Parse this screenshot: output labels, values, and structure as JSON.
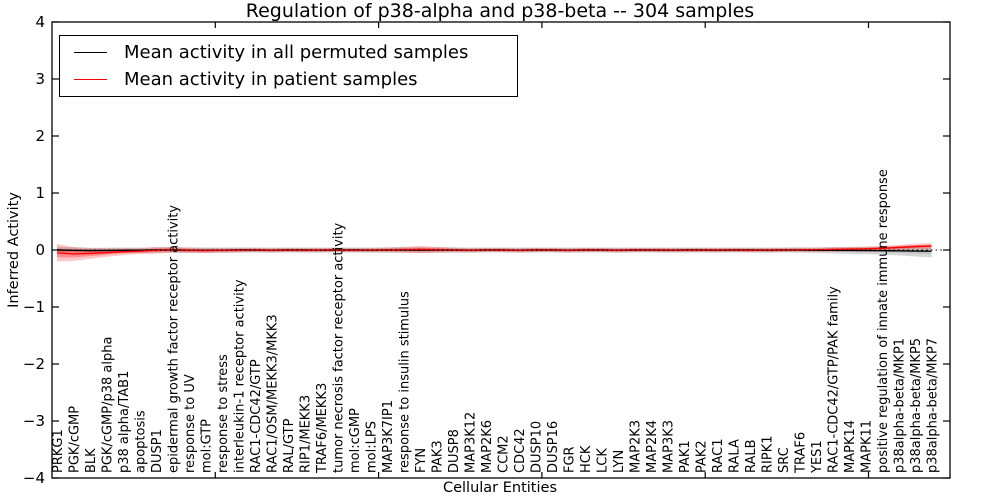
{
  "chart_data": {
    "type": "line",
    "title": "Regulation of p38-alpha and p38-beta -- 304 samples",
    "xlabel": "Cellular Entities",
    "ylabel": "Inferred Activity",
    "ylim": [
      -4,
      4
    ],
    "yticks": [
      4,
      3,
      2,
      1,
      0,
      -1,
      -2,
      -3,
      -4
    ],
    "ytick_labels": [
      "4",
      "3",
      "2",
      "1",
      "0",
      "−1",
      "−2",
      "−3",
      "−4"
    ],
    "grid": false,
    "legend_position": "upper left",
    "zero_line": {
      "style": "dotted",
      "color": "#000000",
      "y": 0
    },
    "colors": {
      "permuted": "#000000",
      "patient": "#ff0000",
      "permuted_band": "rgba(0,0,0,0.16)",
      "patient_band": "rgba(255,0,0,0.22)"
    },
    "categories": [
      "PRKG1",
      "PGK/cGMP",
      "BLK",
      "PGK/cGMP/p38 alpha",
      "p38 alpha/TAB1",
      "apoptosis",
      "DUSP1",
      "epidermal growth factor receptor activity",
      "response to UV",
      "mol:GTP",
      "response to stress",
      "interleukin-1 receptor activity",
      "RAC1-CDC42/GTP",
      "RAC1/OSM/MEKK3/MKK3",
      "RAL/GTP",
      "RIP1/MEKK3",
      "TRAF6/MEKK3",
      "tumor necrosis factor receptor activity",
      "mol:cGMP",
      "mol:LPS",
      "MAP3K7IP1",
      "response to insulin stimulus",
      "FYN",
      "PAK3",
      "DUSP8",
      "MAP3K12",
      "MAP2K6",
      "CCM2",
      "CDC42",
      "DUSP10",
      "DUSP16",
      "FGR",
      "HCK",
      "LCK",
      "LYN",
      "MAP2K3",
      "MAP2K4",
      "MAP3K3",
      "PAK1",
      "PAK2",
      "RAC1",
      "RALA",
      "RALB",
      "RIPK1",
      "SRC",
      "TRAF6",
      "YES1",
      "RAC1-CDC42/GTP/PAK family",
      "MAPK14",
      "MAPK11",
      "positive regulation of innate immune response",
      "p38alpha-beta/MKP1",
      "p38alpha-beta/MKP5",
      "p38alpha-beta/MKP7"
    ],
    "series": [
      {
        "name": "Mean activity in all permuted samples",
        "color": "#000000",
        "values": [
          0,
          -0.005,
          -0.01,
          -0.008,
          -0.005,
          -0.003,
          0,
          0,
          -0.003,
          -0.005,
          -0.003,
          0,
          0,
          -0.003,
          0,
          0,
          -0.003,
          0,
          0,
          -0.003,
          0,
          0,
          -0.003,
          0,
          0,
          -0.003,
          0,
          0,
          -0.003,
          0,
          0,
          -0.003,
          0,
          0,
          -0.003,
          0,
          0,
          -0.003,
          0,
          0,
          -0.003,
          0,
          0,
          -0.003,
          0,
          0,
          -0.005,
          -0.005,
          -0.008,
          -0.01,
          -0.012,
          -0.015,
          -0.018,
          -0.02
        ],
        "std": [
          0.06,
          0.055,
          0.05,
          0.05,
          0.048,
          0.047,
          0.047,
          0.05,
          0.052,
          0.05,
          0.05,
          0.048,
          0.047,
          0.047,
          0.047,
          0.047,
          0.047,
          0.047,
          0.047,
          0.047,
          0.048,
          0.05,
          0.052,
          0.05,
          0.048,
          0.047,
          0.047,
          0.047,
          0.047,
          0.047,
          0.047,
          0.047,
          0.047,
          0.047,
          0.047,
          0.047,
          0.047,
          0.047,
          0.047,
          0.047,
          0.047,
          0.047,
          0.047,
          0.047,
          0.047,
          0.048,
          0.05,
          0.055,
          0.06,
          0.065,
          0.07,
          0.08,
          0.095,
          0.11
        ]
      },
      {
        "name": "Mean activity in patient samples",
        "color": "#ff0000",
        "values": [
          -0.05,
          -0.07,
          -0.06,
          -0.045,
          -0.03,
          -0.02,
          -0.005,
          0.005,
          -0.005,
          -0.01,
          -0.005,
          -0.005,
          0,
          -0.005,
          0,
          -0.005,
          0,
          0,
          -0.005,
          0,
          0,
          0.005,
          0.01,
          0.005,
          0,
          -0.005,
          0,
          0,
          -0.005,
          0,
          0,
          -0.005,
          0,
          0,
          -0.005,
          0,
          0,
          0,
          -0.005,
          0,
          0,
          0,
          -0.005,
          0,
          0,
          0.005,
          0.005,
          0.01,
          0.015,
          0.02,
          0.03,
          0.045,
          0.06,
          0.07
        ],
        "std": [
          0.155,
          0.12,
          0.095,
          0.075,
          0.06,
          0.05,
          0.06,
          0.05,
          0.045,
          0.04,
          0.038,
          0.036,
          0.035,
          0.035,
          0.035,
          0.035,
          0.035,
          0.035,
          0.035,
          0.035,
          0.04,
          0.05,
          0.065,
          0.05,
          0.04,
          0.035,
          0.035,
          0.035,
          0.035,
          0.035,
          0.035,
          0.035,
          0.035,
          0.035,
          0.035,
          0.035,
          0.035,
          0.035,
          0.035,
          0.035,
          0.035,
          0.035,
          0.035,
          0.035,
          0.035,
          0.035,
          0.035,
          0.04,
          0.04,
          0.04,
          0.042,
          0.045,
          0.05,
          0.05
        ]
      }
    ]
  }
}
